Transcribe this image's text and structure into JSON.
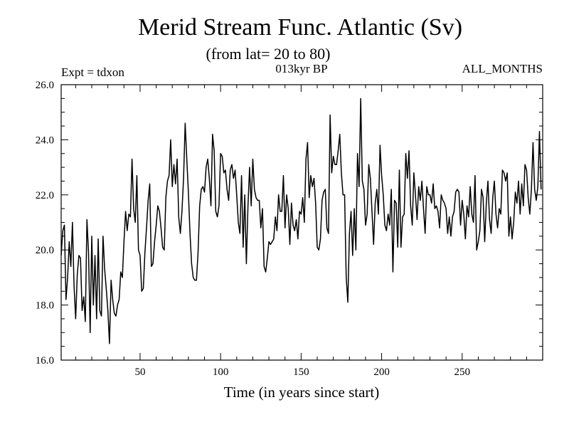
{
  "chart_data": {
    "type": "line",
    "title": "Merid Stream Func. Atlantic (Sv)",
    "subtitle": "(from lat= 20 to 80)",
    "annotations": {
      "left": "Expt = tdxon",
      "center": "013kyr BP",
      "right": "ALL_MONTHS"
    },
    "xlabel": "Time (in years since start)",
    "ylabel": "",
    "xlim": [
      1,
      300
    ],
    "ylim": [
      16,
      26
    ],
    "x_ticks": [
      50,
      100,
      150,
      200,
      250
    ],
    "x_tick_labels": [
      "50",
      "100",
      "150",
      "200",
      "250"
    ],
    "y_ticks": [
      16,
      18,
      20,
      22,
      24,
      26
    ],
    "y_tick_labels": [
      "16.0",
      "18.0",
      "20.0",
      "22.0",
      "24.0",
      "26.0"
    ],
    "grid": false,
    "series": [
      {
        "name": "Merid Stream Func. Atlantic",
        "x_start": 1,
        "x_step": 1,
        "values": [
          19.8,
          20.7,
          20.9,
          18.2,
          19.0,
          20.3,
          19.4,
          21.0,
          18.7,
          17.5,
          19.1,
          19.8,
          19.7,
          17.8,
          18.3,
          17.4,
          21.1,
          19.9,
          17.0,
          20.5,
          18.0,
          19.8,
          17.5,
          20.4,
          17.8,
          17.6,
          20.5,
          19.3,
          18.6,
          17.8,
          16.6,
          18.9,
          18.2,
          17.7,
          17.6,
          18.0,
          18.2,
          19.2,
          19.0,
          20.3,
          21.4,
          20.7,
          21.3,
          21.2,
          23.3,
          21.5,
          21.0,
          22.7,
          20.0,
          19.8,
          18.5,
          18.6,
          19.9,
          20.8,
          21.8,
          22.4,
          19.4,
          19.5,
          20.3,
          20.9,
          21.6,
          21.4,
          20.8,
          20.1,
          20.0,
          21.9,
          22.5,
          22.7,
          24.0,
          22.3,
          23.1,
          22.4,
          23.3,
          21.2,
          20.6,
          21.4,
          22.6,
          24.6,
          23.3,
          22.1,
          20.6,
          19.5,
          19.0,
          18.9,
          18.9,
          19.9,
          21.6,
          22.2,
          22.3,
          22.1,
          23.0,
          23.3,
          22.6,
          21.6,
          24.2,
          23.6,
          21.4,
          21.2,
          21.6,
          23.5,
          23.4,
          22.8,
          22.9,
          22.2,
          21.8,
          22.9,
          23.1,
          22.6,
          22.9,
          22.0,
          21.0,
          20.6,
          22.7,
          20.1,
          22.0,
          19.5,
          21.6,
          23.0,
          21.6,
          23.3,
          22.2,
          21.9,
          21.8,
          21.8,
          20.8,
          21.5,
          19.4,
          19.2,
          19.7,
          20.3,
          20.2,
          20.3,
          20.4,
          21.2,
          20.7,
          22.0,
          21.4,
          21.4,
          22.7,
          20.8,
          22.0,
          21.5,
          20.2,
          21.7,
          20.9,
          20.7,
          21.1,
          20.4,
          21.4,
          21.3,
          21.9,
          21.0,
          23.3,
          23.9,
          21.9,
          22.7,
          22.3,
          22.6,
          21.7,
          20.1,
          20.0,
          20.4,
          21.8,
          22.1,
          22.2,
          20.8,
          20.6,
          24.9,
          22.8,
          23.4,
          23.1,
          23.1,
          23.6,
          24.2,
          22.8,
          22.0,
          22.0,
          19.0,
          18.1,
          20.6,
          21.4,
          19.8,
          21.5,
          20.0,
          23.5,
          22.3,
          25.5,
          22.5,
          22.2,
          20.9,
          21.3,
          23.1,
          22.6,
          21.4,
          20.2,
          21.7,
          22.2,
          21.3,
          23.8,
          22.7,
          22.0,
          20.9,
          20.7,
          21.3,
          20.9,
          22.2,
          19.2,
          21.8,
          21.7,
          20.1,
          22.9,
          20.1,
          21.2,
          21.3,
          23.5,
          22.6,
          23.6,
          21.6,
          20.9,
          22.8,
          22.0,
          21.1,
          22.3,
          21.8,
          22.5,
          21.5,
          20.6,
          22.3,
          22.0,
          22.0,
          21.7,
          22.4,
          21.5,
          21.6,
          21.4,
          20.8,
          22.0,
          21.8,
          21.7,
          21.5,
          20.6,
          21.2,
          20.5,
          21.2,
          21.4,
          22.1,
          22.2,
          22.1,
          20.9,
          21.8,
          21.3,
          20.4,
          21.6,
          21.2,
          22.3,
          21.3,
          21.0,
          22.7,
          20.0,
          20.3,
          20.7,
          22.2,
          21.9,
          20.3,
          21.7,
          22.5,
          21.1,
          20.6,
          21.9,
          22.5,
          21.3,
          20.8,
          21.5,
          21.3,
          22.9,
          22.8,
          22.5,
          22.8,
          20.5,
          21.2,
          20.4,
          21.0,
          22.1,
          21.7,
          22.5,
          21.3,
          22.4,
          21.6,
          23.1,
          22.9,
          21.9,
          21.3,
          22.2,
          23.9,
          22.2,
          21.8,
          22.3,
          24.3,
          22.2
        ]
      }
    ]
  }
}
